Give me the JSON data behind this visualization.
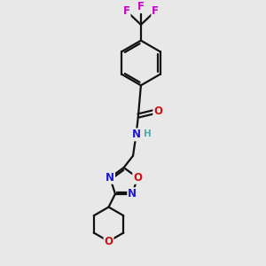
{
  "background_color": "#e8e8e8",
  "bond_color": "#111111",
  "N_color": "#1a1acc",
  "O_color": "#cc1111",
  "F_color": "#cc00cc",
  "H_color": "#4daaaa",
  "line_width": 1.6,
  "font_size_atom": 8.5,
  "fig_size": [
    3.0,
    3.0
  ],
  "dpi": 100,
  "xlim": [
    0,
    10
  ],
  "ylim": [
    0,
    10
  ]
}
